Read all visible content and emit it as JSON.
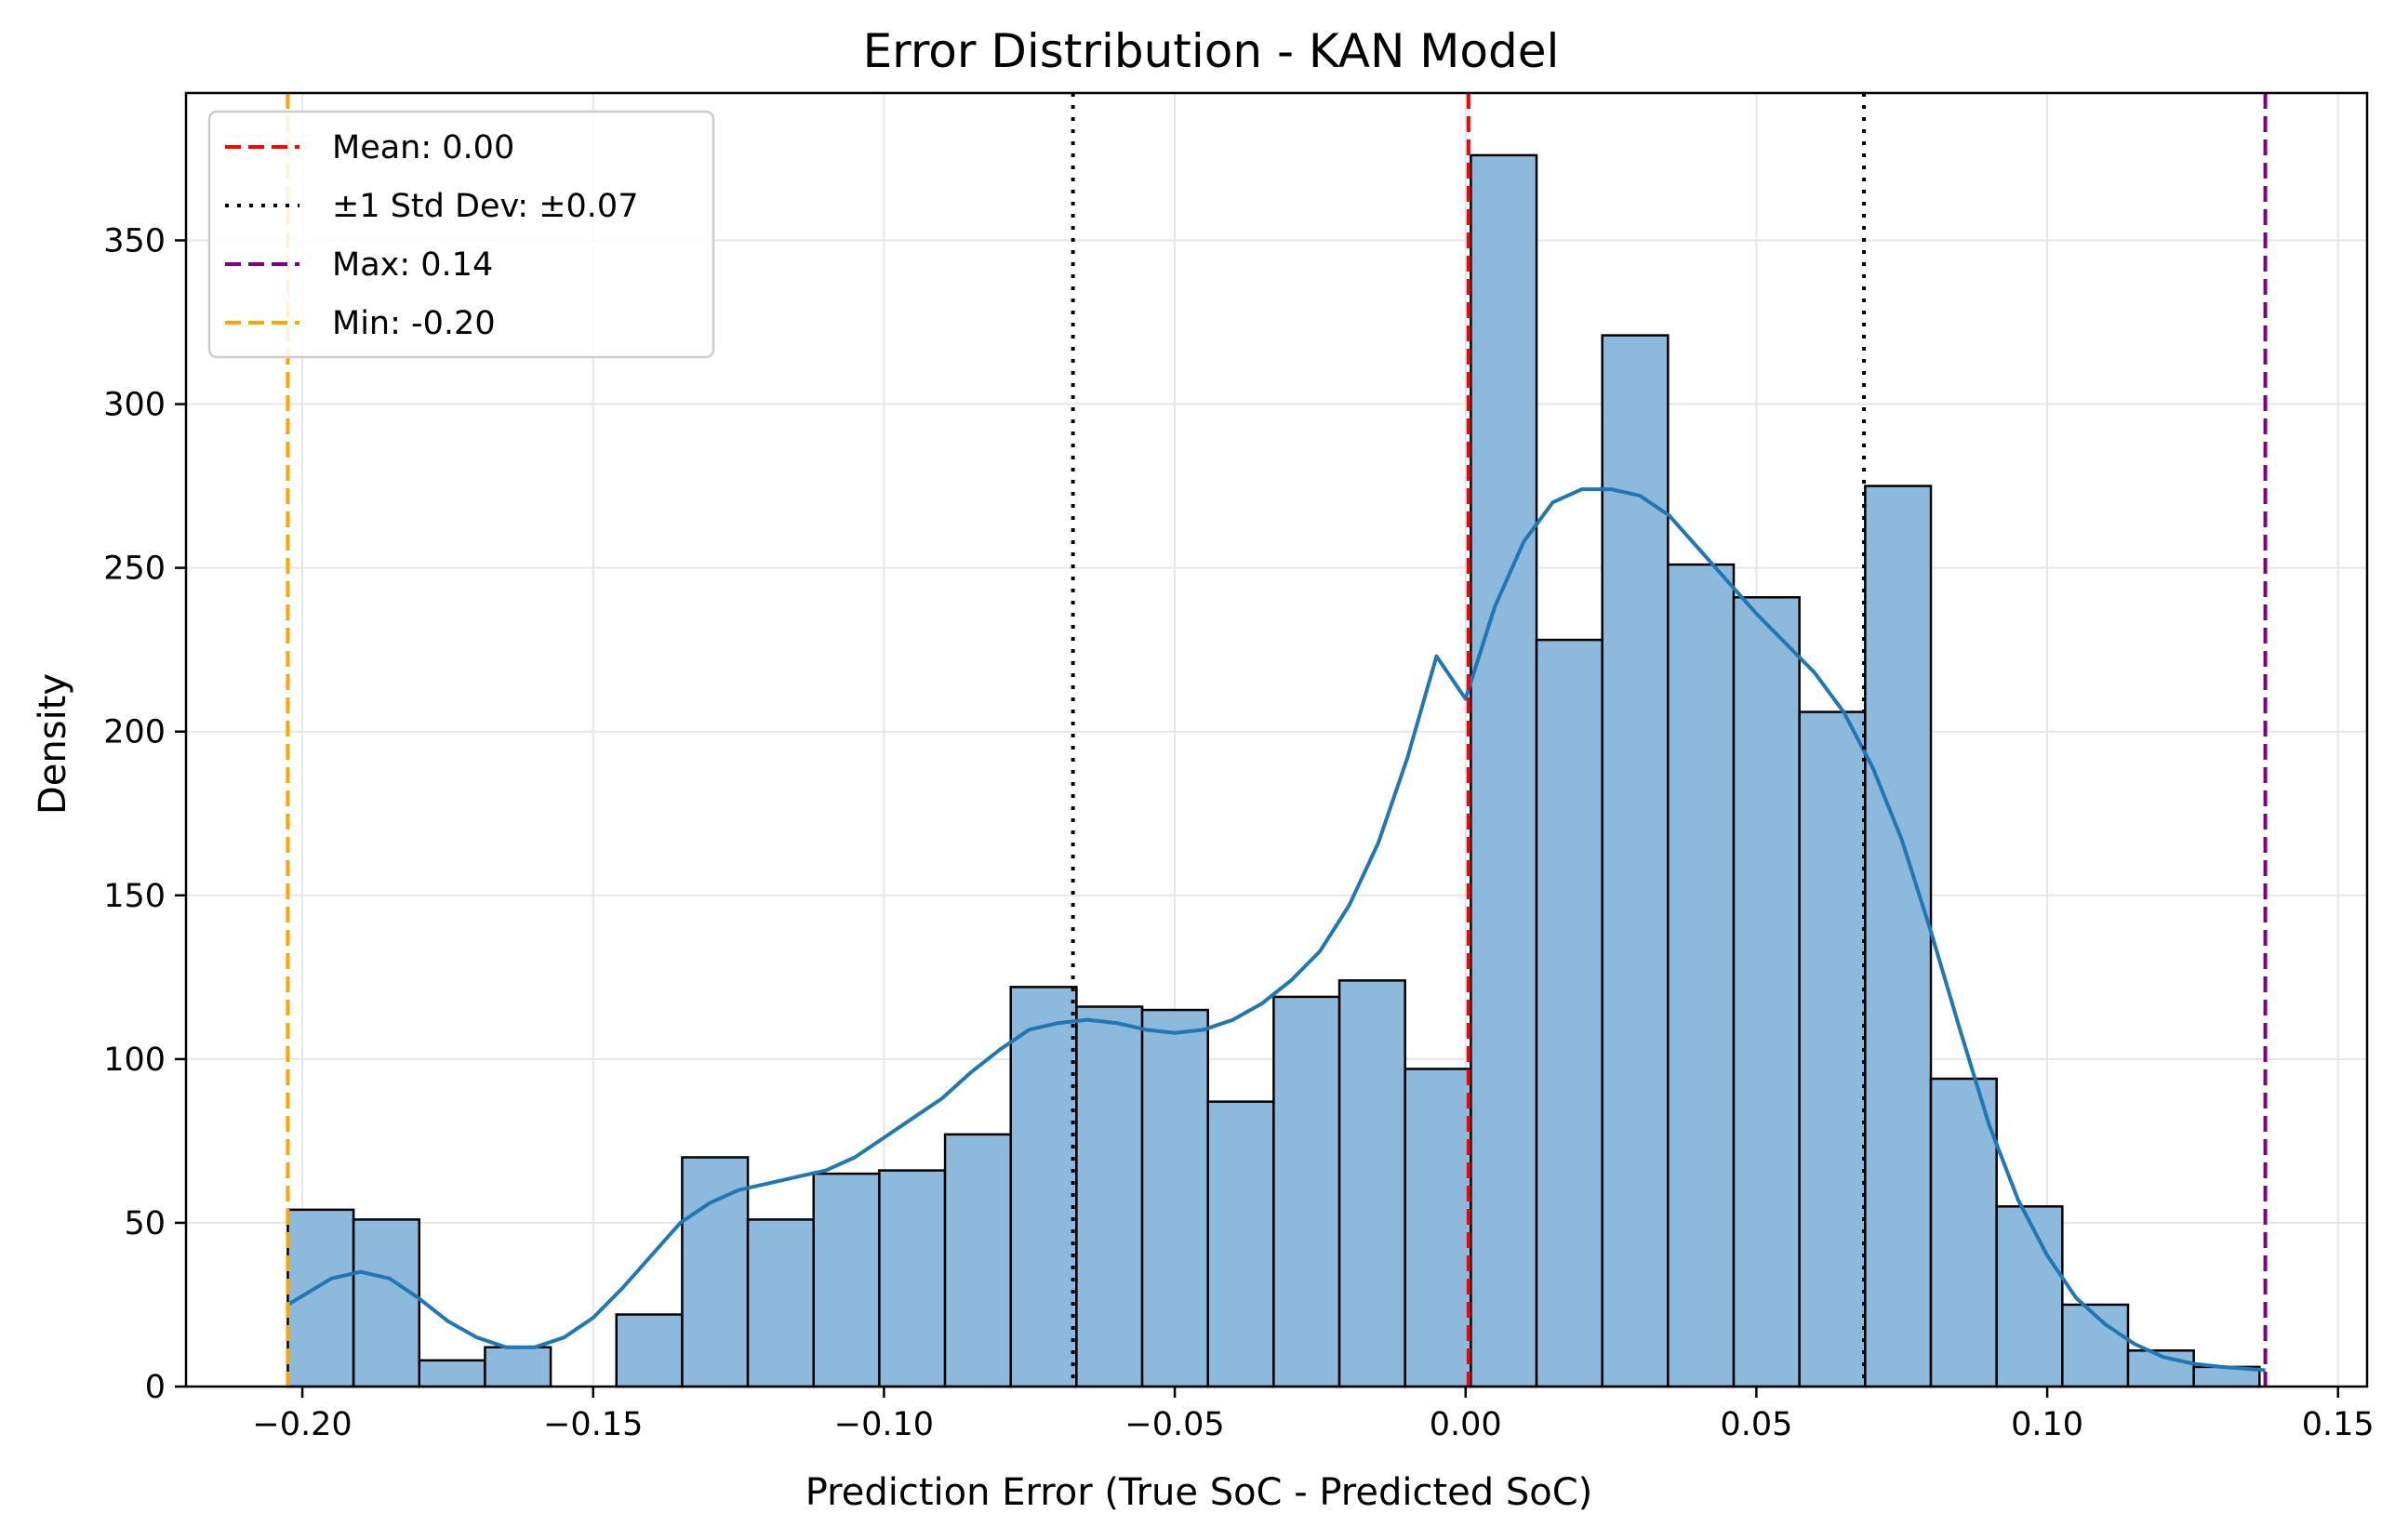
{
  "chart_data": {
    "type": "bar",
    "title": "Error Distribution - KAN Model",
    "xlabel": "Prediction Error (True SoC - Predicted SoC)",
    "ylabel": "Density",
    "xlim": [
      -0.22,
      0.155
    ],
    "ylim": [
      0,
      395
    ],
    "grid": true,
    "legend_position": "top-left",
    "x_ticks": [
      -0.2,
      -0.15,
      -0.1,
      -0.05,
      0.0,
      0.05,
      0.1,
      0.15
    ],
    "x_tick_labels": [
      "−0.20",
      "−0.15",
      "−0.10",
      "−0.05",
      "0.00",
      "0.05",
      "0.10",
      "0.15"
    ],
    "y_ticks": [
      0,
      50,
      100,
      150,
      200,
      250,
      300,
      350
    ],
    "y_tick_labels": [
      "0",
      "50",
      "100",
      "150",
      "200",
      "250",
      "300",
      "350"
    ],
    "bin_start": -0.2025,
    "bin_width": 0.0113,
    "values": [
      54,
      51,
      8,
      12,
      0,
      22,
      70,
      51,
      65,
      66,
      77,
      122,
      116,
      115,
      87,
      119,
      124,
      97,
      376,
      228,
      321,
      251,
      241,
      206,
      275,
      94,
      55,
      25,
      11,
      6
    ],
    "kde": {
      "name": "KDE",
      "x": [
        -0.2025,
        -0.195,
        -0.19,
        -0.185,
        -0.18,
        -0.175,
        -0.17,
        -0.165,
        -0.16,
        -0.155,
        -0.15,
        -0.145,
        -0.14,
        -0.135,
        -0.13,
        -0.125,
        -0.12,
        -0.115,
        -0.11,
        -0.105,
        -0.1,
        -0.095,
        -0.09,
        -0.085,
        -0.08,
        -0.075,
        -0.07,
        -0.065,
        -0.06,
        -0.055,
        -0.05,
        -0.045,
        -0.04,
        -0.035,
        -0.03,
        -0.025,
        -0.02,
        -0.015,
        -0.01,
        -0.005,
        0.0,
        0.005,
        0.01,
        0.015,
        0.02,
        0.025,
        0.03,
        0.035,
        0.04,
        0.045,
        0.05,
        0.055,
        0.06,
        0.065,
        0.07,
        0.075,
        0.08,
        0.085,
        0.09,
        0.095,
        0.1,
        0.105,
        0.11,
        0.115,
        0.12,
        0.125,
        0.13,
        0.1375
      ],
      "y": [
        25,
        33,
        35,
        33,
        27,
        20,
        15,
        12,
        12,
        15,
        21,
        30,
        40,
        50,
        56,
        60,
        62,
        64,
        66,
        70,
        76,
        82,
        88,
        96,
        103,
        109,
        111,
        112,
        111,
        109,
        108,
        109,
        112,
        117,
        124,
        133,
        147,
        166,
        192,
        223,
        210,
        238,
        258,
        270,
        274,
        274,
        272,
        266,
        256,
        246,
        236,
        227,
        218,
        206,
        189,
        167,
        139,
        109,
        80,
        57,
        40,
        27,
        19,
        13,
        9,
        7,
        6,
        5
      ]
    },
    "series": [
      {
        "name": "Mean: 0.00",
        "x": 0.0005,
        "color": "#ff0000",
        "dash": "dashed"
      },
      {
        "name": "±1 Std Dev: ±0.07",
        "x": [
          -0.0675,
          0.0685
        ],
        "color": "#000000",
        "dash": "dotted"
      },
      {
        "name": "Max: 0.14",
        "x": 0.1375,
        "color": "#800080",
        "dash": "dashed"
      },
      {
        "name": "Min: -0.20",
        "x": -0.2025,
        "color": "#ffa500",
        "dash": "dashed"
      }
    ],
    "colors": {
      "bar_fill": "#8cb9dc",
      "bar_edge": "#000000",
      "kde_line": "#1f77b4",
      "grid": "#e6e6e6"
    }
  }
}
